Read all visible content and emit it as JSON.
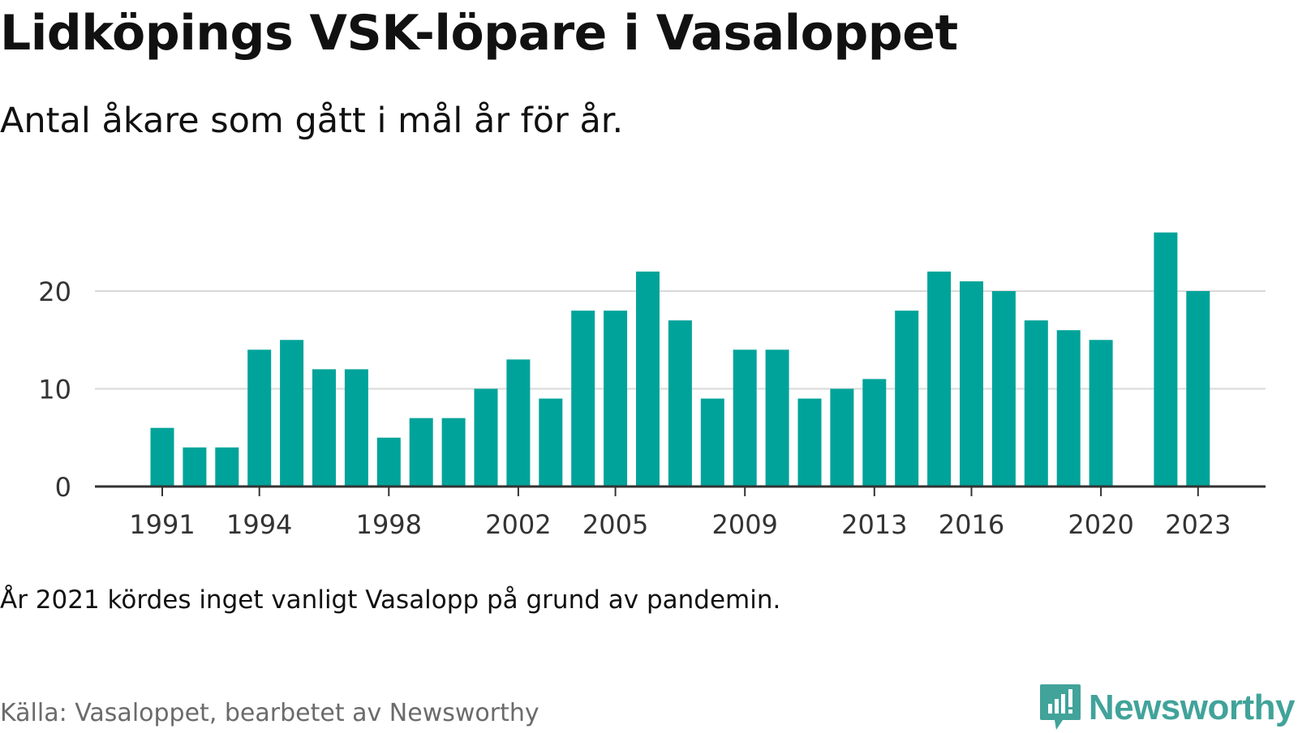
{
  "title": "Lidköpings VSK-löpare i Vasaloppet",
  "subtitle": "Antal åkare som gått i mål år för år.",
  "note": "År 2021 kördes inget vanligt Vasalopp på grund av pandemin.",
  "source": "Källa: Vasaloppet, bearbetet av Newsworthy",
  "logo": {
    "text": "Newsworthy",
    "icon": "newsworthy-chart-bubble-icon",
    "color": "#41a39a"
  },
  "colors": {
    "bar": "#00a39a",
    "grid": "#d9d9d9",
    "axis": "#333333"
  },
  "chart_data": {
    "type": "bar",
    "x": [
      1991,
      1992,
      1993,
      1994,
      1995,
      1996,
      1997,
      1998,
      1999,
      2000,
      2001,
      2002,
      2003,
      2004,
      2005,
      2006,
      2007,
      2008,
      2009,
      2010,
      2011,
      2012,
      2013,
      2014,
      2015,
      2016,
      2017,
      2018,
      2019,
      2020,
      2021,
      2022,
      2023
    ],
    "values": [
      6,
      4,
      4,
      14,
      15,
      12,
      12,
      5,
      7,
      7,
      10,
      13,
      9,
      18,
      18,
      22,
      17,
      9,
      14,
      14,
      9,
      10,
      11,
      18,
      22,
      21,
      20,
      17,
      16,
      15,
      null,
      26,
      20
    ],
    "x_ticks": [
      1991,
      1994,
      1998,
      2002,
      2005,
      2009,
      2013,
      2016,
      2020,
      2023
    ],
    "y_ticks": [
      0,
      10,
      20
    ],
    "ylim": [
      0,
      28
    ],
    "grid": true,
    "xlabel": "",
    "ylabel": ""
  }
}
